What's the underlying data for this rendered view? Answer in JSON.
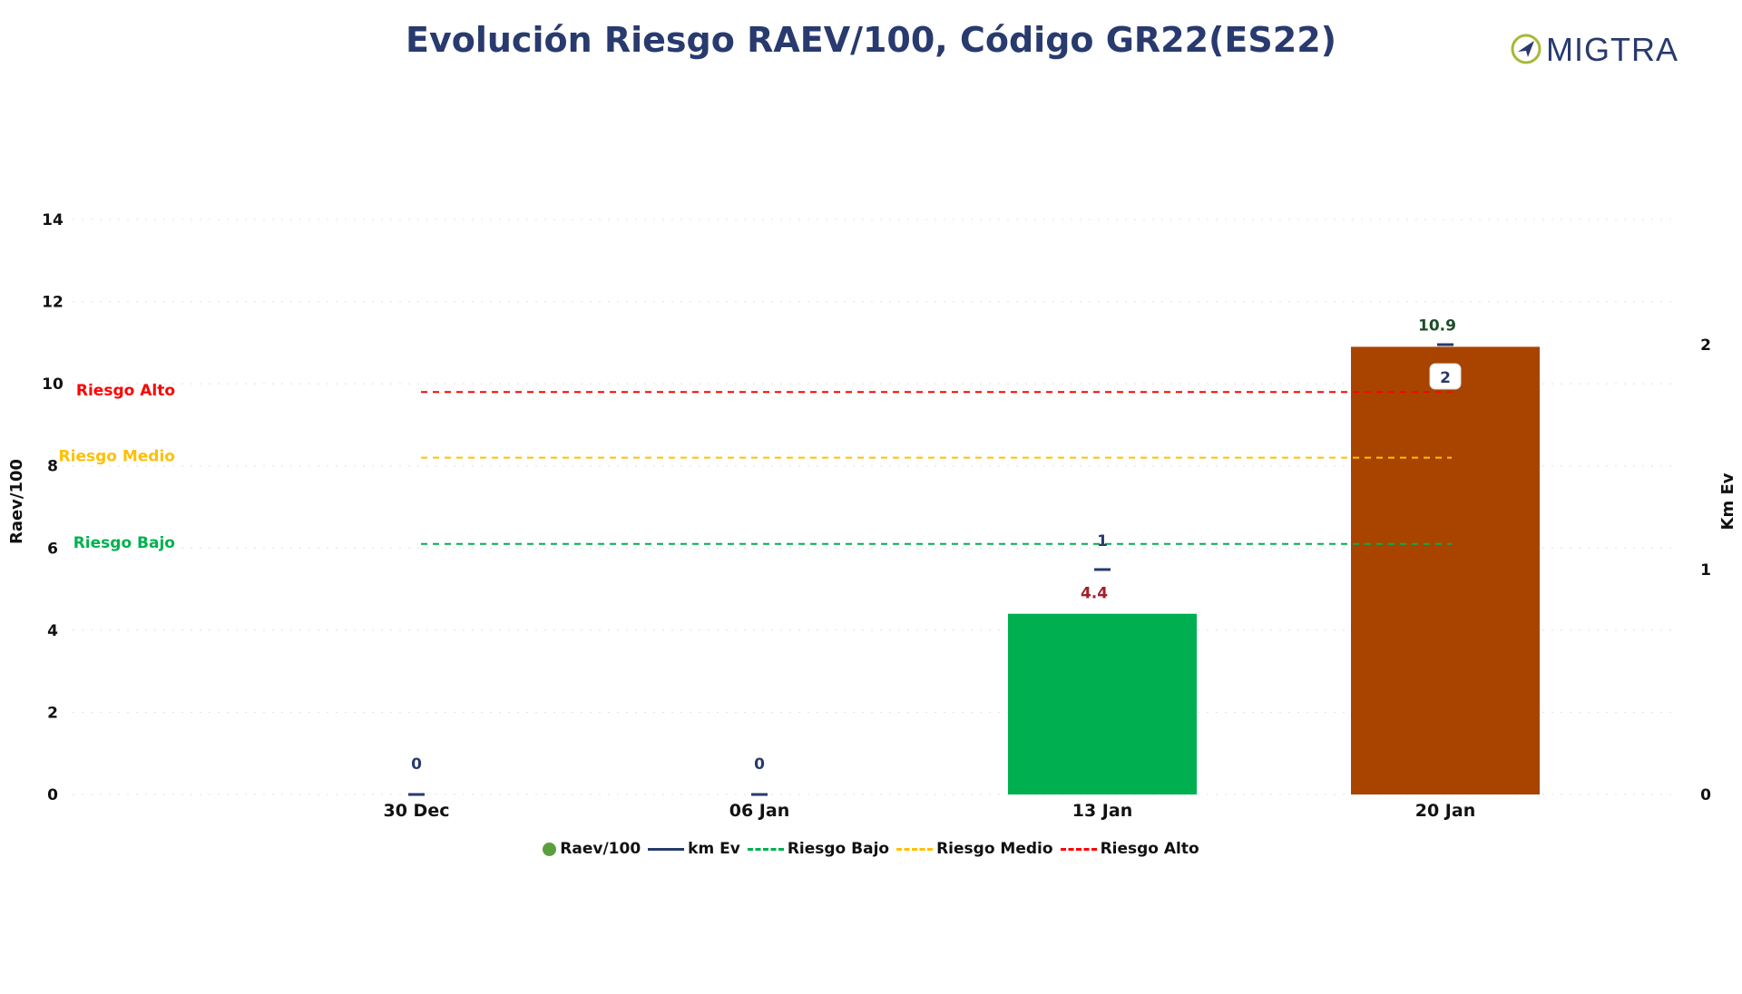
{
  "title": "Evolución Riesgo RAEV/100, Código GR22(ES22)",
  "logo": {
    "text": "MIGTRA",
    "icon": "compass-arrow-icon",
    "text_color": "#283a6e",
    "ring_color": "#a7b83a"
  },
  "chart_data": {
    "type": "bar",
    "categories": [
      "30 Dec",
      "06 Jan",
      "13 Jan",
      "20 Jan"
    ],
    "ylabel": "Raev/100",
    "y2label": "Km Ev",
    "ylim": [
      0,
      14
    ],
    "yticks": [
      "0",
      "2",
      "4",
      "6",
      "8",
      "10",
      "12",
      "14"
    ],
    "y2lim": [
      0,
      2
    ],
    "y2ticks": [
      "0",
      "1",
      "2"
    ],
    "grid": true,
    "legend_position": "bottom",
    "series": [
      {
        "name": "Raev/100",
        "kind": "bar",
        "values": [
          0,
          0,
          4.4,
          10.9
        ],
        "labels": [
          "0",
          "0",
          "4.4",
          "10.9"
        ],
        "bar_colors": [
          "#00b050",
          "#00b050",
          "#00b050",
          "#a84400"
        ],
        "label_colors": [
          "#283a6e",
          "#283a6e",
          "#a3202a",
          "#1e4d2b"
        ],
        "legend_color": "#5a9e3e"
      },
      {
        "name": "km Ev",
        "kind": "marker",
        "axis": "y2",
        "values": [
          0,
          0,
          1,
          2
        ],
        "labels": [
          "",
          "",
          "1",
          "2"
        ],
        "color": "#283a6e"
      }
    ],
    "thresholds": [
      {
        "name": "Riesgo Bajo",
        "value": 6.1,
        "color": "#00b050"
      },
      {
        "name": "Riesgo Medio",
        "value": 8.2,
        "color": "#ffc000"
      },
      {
        "name": "Riesgo Alto",
        "value": 9.8,
        "color": "#ff0000"
      }
    ]
  }
}
